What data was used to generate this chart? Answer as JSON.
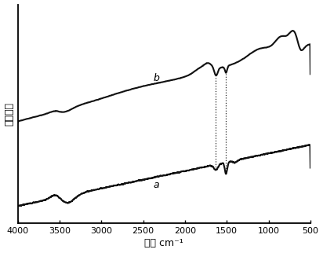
{
  "title": "",
  "xlabel": "波数 cm⁻¹",
  "ylabel": "透射强度",
  "xlim": [
    4000,
    500
  ],
  "ylim": [
    0,
    1
  ],
  "x_ticks": [
    4000,
    3500,
    3000,
    2500,
    2000,
    1500,
    1000,
    500
  ],
  "label_a": "a",
  "label_b": "b",
  "dotted_lines": [
    1630,
    1510
  ],
  "background": "#ffffff",
  "line_color": "#111111",
  "line_width": 1.5
}
